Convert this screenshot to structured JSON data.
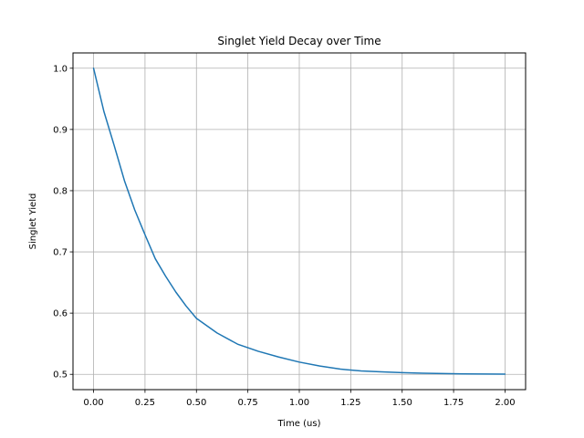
{
  "chart_data": {
    "type": "line",
    "title": "Singlet Yield Decay over Time",
    "xlabel": "Time (us)",
    "ylabel": "Singlet Yield",
    "xlim": [
      -0.1,
      2.1
    ],
    "ylim": [
      0.475,
      1.025
    ],
    "grid": true,
    "x_ticks": [
      0.0,
      0.25,
      0.5,
      0.75,
      1.0,
      1.25,
      1.5,
      1.75,
      2.0
    ],
    "x_tick_labels": [
      "0.00",
      "0.25",
      "0.50",
      "0.75",
      "1.00",
      "1.25",
      "1.50",
      "1.75",
      "2.00"
    ],
    "y_ticks": [
      0.5,
      0.6,
      0.7,
      0.8,
      0.9,
      1.0
    ],
    "y_tick_labels": [
      "0.5",
      "0.6",
      "0.7",
      "0.8",
      "0.9",
      "1.0"
    ],
    "series": [
      {
        "color": "#1f77b4",
        "x": [
          0.0,
          0.05,
          0.1,
          0.15,
          0.2,
          0.25,
          0.3,
          0.35,
          0.4,
          0.45,
          0.5,
          0.6,
          0.7,
          0.8,
          0.9,
          1.0,
          1.1,
          1.2,
          1.3,
          1.4,
          1.5,
          1.6,
          1.7,
          1.8,
          1.9,
          2.0
        ],
        "y": [
          1.0,
          0.9296,
          0.874,
          0.8164,
          0.7686,
          0.728,
          0.6888,
          0.6604,
          0.6343,
          0.6115,
          0.5915,
          0.5676,
          0.5493,
          0.5377,
          0.5283,
          0.52,
          0.5135,
          0.5085,
          0.5055,
          0.504,
          0.5028,
          0.5018,
          0.5012,
          0.5008,
          0.5005,
          0.5003
        ]
      }
    ]
  }
}
